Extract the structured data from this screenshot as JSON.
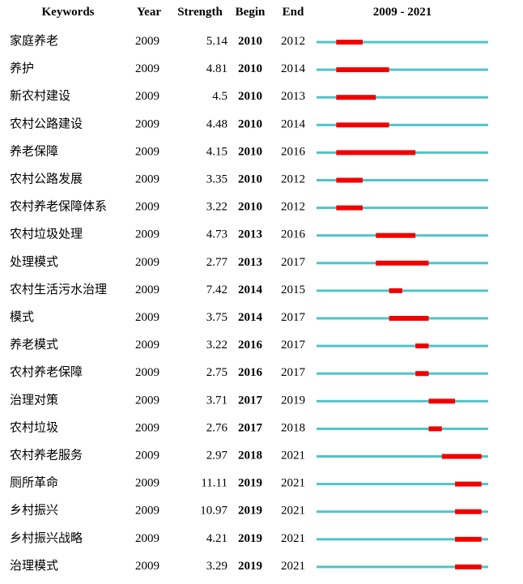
{
  "chart_data": {
    "type": "table",
    "headers": {
      "keywords": "Keywords",
      "year": "Year",
      "strength": "Strength",
      "begin": "Begin",
      "end": "End",
      "range": "2009 - 2021"
    },
    "range_start": 2009,
    "range_end": 2021,
    "colors": {
      "timeline": "#4fc4c9",
      "burst": "#f20000"
    },
    "rows": [
      {
        "keyword": "家庭养老",
        "year": "2009",
        "strength": "5.14",
        "begin": "2010",
        "end": "2012"
      },
      {
        "keyword": "养护",
        "year": "2009",
        "strength": "4.81",
        "begin": "2010",
        "end": "2014"
      },
      {
        "keyword": "新农村建设",
        "year": "2009",
        "strength": "4.5",
        "begin": "2010",
        "end": "2013"
      },
      {
        "keyword": "农村公路建设",
        "year": "2009",
        "strength": "4.48",
        "begin": "2010",
        "end": "2014"
      },
      {
        "keyword": "养老保障",
        "year": "2009",
        "strength": "4.15",
        "begin": "2010",
        "end": "2016"
      },
      {
        "keyword": "农村公路发展",
        "year": "2009",
        "strength": "3.35",
        "begin": "2010",
        "end": "2012"
      },
      {
        "keyword": "农村养老保障体系",
        "year": "2009",
        "strength": "3.22",
        "begin": "2010",
        "end": "2012"
      },
      {
        "keyword": "农村垃圾处理",
        "year": "2009",
        "strength": "4.73",
        "begin": "2013",
        "end": "2016"
      },
      {
        "keyword": "处理模式",
        "year": "2009",
        "strength": "2.77",
        "begin": "2013",
        "end": "2017"
      },
      {
        "keyword": "农村生活污水治理",
        "year": "2009",
        "strength": "7.42",
        "begin": "2014",
        "end": "2015"
      },
      {
        "keyword": "模式",
        "year": "2009",
        "strength": "3.75",
        "begin": "2014",
        "end": "2017"
      },
      {
        "keyword": "养老模式",
        "year": "2009",
        "strength": "3.22",
        "begin": "2016",
        "end": "2017"
      },
      {
        "keyword": "农村养老保障",
        "year": "2009",
        "strength": "2.75",
        "begin": "2016",
        "end": "2017"
      },
      {
        "keyword": "治理对策",
        "year": "2009",
        "strength": "3.71",
        "begin": "2017",
        "end": "2019"
      },
      {
        "keyword": "农村垃圾",
        "year": "2009",
        "strength": "2.76",
        "begin": "2017",
        "end": "2018"
      },
      {
        "keyword": "农村养老服务",
        "year": "2009",
        "strength": "2.97",
        "begin": "2018",
        "end": "2021"
      },
      {
        "keyword": "厕所革命",
        "year": "2009",
        "strength": "11.11",
        "begin": "2019",
        "end": "2021"
      },
      {
        "keyword": "乡村振兴",
        "year": "2009",
        "strength": "10.97",
        "begin": "2019",
        "end": "2021"
      },
      {
        "keyword": "乡村振兴战略",
        "year": "2009",
        "strength": "4.21",
        "begin": "2019",
        "end": "2021"
      },
      {
        "keyword": "治理模式",
        "year": "2009",
        "strength": "3.29",
        "begin": "2019",
        "end": "2021"
      }
    ]
  }
}
